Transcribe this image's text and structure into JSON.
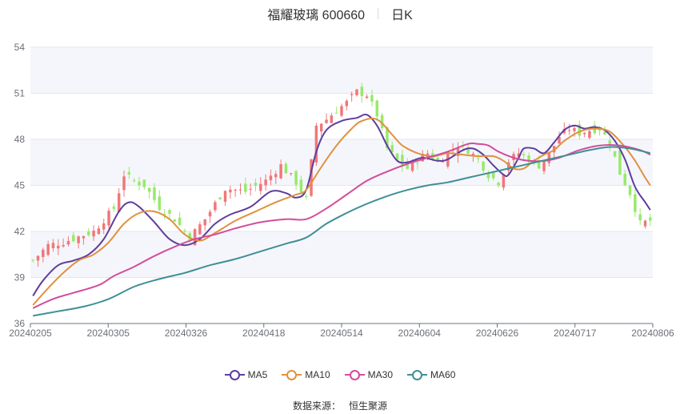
{
  "header": {
    "title": "福耀玻璃 600660",
    "period": "日K"
  },
  "source": {
    "label": "数据来源：",
    "value": "恒生聚源"
  },
  "colors": {
    "up": "#f0777a",
    "down": "#97e96b",
    "grid": "#e0e6f1",
    "band": "#f5f6fb",
    "axis": "#6e7079",
    "ma5": "#5e3d9e",
    "ma10": "#e0913f",
    "ma30": "#d24d9c",
    "ma60": "#3f8f96"
  },
  "chart_data": {
    "type": "candlestick",
    "title": "福耀玻璃 600660",
    "period": "日K",
    "y_axis": {
      "min": 36,
      "max": 54,
      "ticks": [
        36,
        39,
        42,
        45,
        48,
        51,
        54
      ]
    },
    "x_axis_labels": [
      "20240205",
      "20240305",
      "20240326",
      "20240418",
      "20240514",
      "20240604",
      "20240626",
      "20240717",
      "20240806"
    ],
    "num_days": 123,
    "legend": [
      "MA5",
      "MA10",
      "MA30",
      "MA60"
    ],
    "price_path": [
      [
        0,
        40.1
      ],
      [
        3,
        41.1
      ],
      [
        6,
        41.3
      ],
      [
        12,
        42.0
      ],
      [
        16,
        43.5
      ],
      [
        18,
        45.7
      ],
      [
        20,
        45.3
      ],
      [
        22,
        45.0
      ],
      [
        25,
        43.6
      ],
      [
        28,
        42.8
      ],
      [
        31,
        41.6
      ],
      [
        34,
        42.8
      ],
      [
        38,
        44.8
      ],
      [
        42,
        44.6
      ],
      [
        46,
        45.3
      ],
      [
        49,
        46.3
      ],
      [
        52,
        45.2
      ],
      [
        54,
        44.1
      ],
      [
        56,
        48.9
      ],
      [
        58,
        49.3
      ],
      [
        60,
        49.9
      ],
      [
        62,
        50.4
      ],
      [
        64,
        51.1
      ],
      [
        66,
        50.9
      ],
      [
        68,
        49.6
      ],
      [
        70,
        47.4
      ],
      [
        72,
        46.6
      ],
      [
        74,
        46.1
      ],
      [
        76,
        46.7
      ],
      [
        78,
        47.1
      ],
      [
        80,
        46.5
      ],
      [
        82,
        47.1
      ],
      [
        84,
        47.6
      ],
      [
        86,
        47.3
      ],
      [
        88,
        46.7
      ],
      [
        90,
        45.7
      ],
      [
        92,
        45.2
      ],
      [
        94,
        46.6
      ],
      [
        96,
        47.1
      ],
      [
        98,
        46.7
      ],
      [
        100,
        46.3
      ],
      [
        102,
        47.0
      ],
      [
        104,
        48.2
      ],
      [
        106,
        48.7
      ],
      [
        108,
        48.4
      ],
      [
        110,
        48.6
      ],
      [
        112,
        48.7
      ],
      [
        114,
        47.8
      ],
      [
        116,
        45.8
      ],
      [
        118,
        44.5
      ],
      [
        120,
        42.5
      ],
      [
        122,
        42.7
      ]
    ],
    "series": [
      {
        "name": "MA5",
        "points": [
          [
            0,
            37.8
          ],
          [
            2,
            38.8
          ],
          [
            5,
            39.8
          ],
          [
            8,
            40.1
          ],
          [
            11,
            40.5
          ],
          [
            14,
            41.5
          ],
          [
            17,
            43.3
          ],
          [
            19,
            43.9
          ],
          [
            21,
            43.6
          ],
          [
            24,
            42.6
          ],
          [
            27,
            41.5
          ],
          [
            30,
            41.1
          ],
          [
            33,
            41.5
          ],
          [
            36,
            42.5
          ],
          [
            39,
            43.1
          ],
          [
            43,
            43.6
          ],
          [
            47,
            44.6
          ],
          [
            50,
            44.5
          ],
          [
            52,
            44.2
          ],
          [
            54,
            44.7
          ],
          [
            56,
            47.2
          ],
          [
            58,
            48.6
          ],
          [
            61,
            49.2
          ],
          [
            64,
            49.4
          ],
          [
            66,
            49.6
          ],
          [
            68,
            48.9
          ],
          [
            70,
            47.6
          ],
          [
            72,
            46.6
          ],
          [
            74,
            46.5
          ],
          [
            77,
            46.8
          ],
          [
            80,
            46.6
          ],
          [
            82,
            46.7
          ],
          [
            85,
            47.3
          ],
          [
            87,
            47.4
          ],
          [
            89,
            47.0
          ],
          [
            91,
            46.3
          ],
          [
            93,
            45.7
          ],
          [
            94,
            45.7
          ],
          [
            96,
            46.8
          ],
          [
            97,
            47.4
          ],
          [
            99,
            47.4
          ],
          [
            101,
            47.1
          ],
          [
            103,
            47.8
          ],
          [
            105,
            48.6
          ],
          [
            107,
            48.9
          ],
          [
            109,
            48.7
          ],
          [
            111,
            48.8
          ],
          [
            113,
            48.6
          ],
          [
            115,
            47.9
          ],
          [
            117,
            46.7
          ],
          [
            119,
            44.9
          ],
          [
            121,
            43.9
          ],
          [
            122,
            43.4
          ]
        ]
      },
      {
        "name": "MA10",
        "points": [
          [
            0,
            37.2
          ],
          [
            3,
            38.3
          ],
          [
            6,
            39.3
          ],
          [
            9,
            40.1
          ],
          [
            12,
            40.5
          ],
          [
            15,
            41.3
          ],
          [
            18,
            42.5
          ],
          [
            21,
            43.2
          ],
          [
            24,
            43.3
          ],
          [
            27,
            42.8
          ],
          [
            30,
            41.8
          ],
          [
            33,
            41.4
          ],
          [
            36,
            41.9
          ],
          [
            40,
            42.7
          ],
          [
            44,
            43.3
          ],
          [
            48,
            43.9
          ],
          [
            52,
            44.4
          ],
          [
            54,
            44.7
          ],
          [
            57,
            46.2
          ],
          [
            60,
            47.6
          ],
          [
            63,
            48.7
          ],
          [
            65,
            49.2
          ],
          [
            68,
            49.3
          ],
          [
            71,
            48.3
          ],
          [
            73,
            47.6
          ],
          [
            76,
            47.1
          ],
          [
            79,
            46.9
          ],
          [
            82,
            47.1
          ],
          [
            85,
            47.0
          ],
          [
            88,
            46.9
          ],
          [
            91,
            46.9
          ],
          [
            93,
            46.6
          ],
          [
            95,
            46.1
          ],
          [
            97,
            46.1
          ],
          [
            99,
            46.6
          ],
          [
            101,
            47.0
          ],
          [
            103,
            47.3
          ],
          [
            105,
            47.9
          ],
          [
            108,
            48.5
          ],
          [
            111,
            48.7
          ],
          [
            114,
            48.5
          ],
          [
            117,
            47.5
          ],
          [
            119,
            46.6
          ],
          [
            121,
            45.5
          ],
          [
            122,
            45.0
          ]
        ]
      },
      {
        "name": "MA30",
        "points": [
          [
            0,
            37.0
          ],
          [
            4,
            37.6
          ],
          [
            8,
            38.0
          ],
          [
            13,
            38.5
          ],
          [
            16,
            39.1
          ],
          [
            20,
            39.7
          ],
          [
            24,
            40.4
          ],
          [
            28,
            41.0
          ],
          [
            32,
            41.5
          ],
          [
            36,
            41.8
          ],
          [
            40,
            42.2
          ],
          [
            45,
            42.6
          ],
          [
            50,
            42.8
          ],
          [
            54,
            42.8
          ],
          [
            58,
            43.5
          ],
          [
            62,
            44.4
          ],
          [
            66,
            45.3
          ],
          [
            70,
            45.9
          ],
          [
            74,
            46.4
          ],
          [
            78,
            46.8
          ],
          [
            82,
            47.2
          ],
          [
            86,
            47.7
          ],
          [
            88,
            47.7
          ],
          [
            90,
            47.6
          ],
          [
            92,
            47.2
          ],
          [
            95,
            46.8
          ],
          [
            98,
            46.6
          ],
          [
            101,
            46.6
          ],
          [
            104,
            46.8
          ],
          [
            108,
            47.3
          ],
          [
            112,
            47.6
          ],
          [
            116,
            47.6
          ],
          [
            120,
            47.3
          ],
          [
            122,
            47.0
          ]
        ]
      },
      {
        "name": "MA60",
        "points": [
          [
            0,
            36.5
          ],
          [
            5,
            36.8
          ],
          [
            10,
            37.1
          ],
          [
            15,
            37.6
          ],
          [
            20,
            38.4
          ],
          [
            25,
            38.9
          ],
          [
            30,
            39.3
          ],
          [
            35,
            39.8
          ],
          [
            40,
            40.2
          ],
          [
            45,
            40.7
          ],
          [
            50,
            41.2
          ],
          [
            54,
            41.6
          ],
          [
            58,
            42.5
          ],
          [
            62,
            43.2
          ],
          [
            66,
            43.8
          ],
          [
            70,
            44.3
          ],
          [
            74,
            44.7
          ],
          [
            78,
            45.0
          ],
          [
            82,
            45.2
          ],
          [
            86,
            45.5
          ],
          [
            90,
            45.8
          ],
          [
            94,
            46.1
          ],
          [
            98,
            46.4
          ],
          [
            102,
            46.7
          ],
          [
            106,
            47.0
          ],
          [
            110,
            47.3
          ],
          [
            114,
            47.5
          ],
          [
            118,
            47.4
          ],
          [
            122,
            47.1
          ]
        ]
      }
    ]
  }
}
